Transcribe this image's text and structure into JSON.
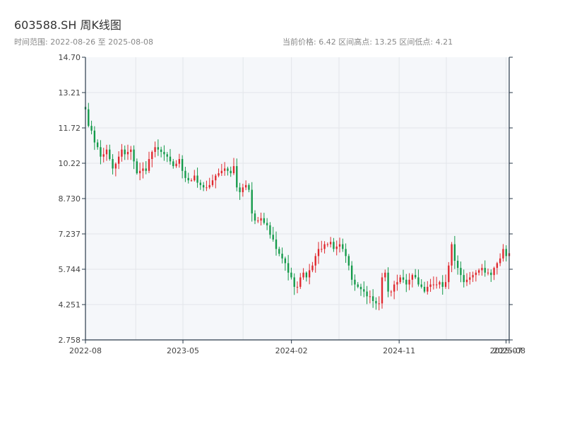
{
  "header": {
    "title": "603588.SH 周K线图",
    "range_text": "时间范围: 2022-08-26 至 2025-08-08",
    "stats_text": "当前价格: 6.42   区间高点: 13.25   区间低点: 4.21"
  },
  "colors": {
    "up": "#e0282e",
    "down": "#149a4a",
    "plot_bg": "#f5f7fa",
    "grid": "#e3e6ea",
    "axis": "#2a3a4a"
  },
  "chart_data": {
    "type": "candlestick",
    "title": "603588.SH 周K线图",
    "ylim": [
      2.758,
      14.7
    ],
    "y_ticks": [
      "2.758",
      "4.251",
      "5.744",
      "7.237",
      "8.730",
      "10.22",
      "11.72",
      "13.21",
      "14.70"
    ],
    "x_ticks": [
      "2022-08",
      "2023-05",
      "2024-02",
      "2024-11",
      "2025-07",
      "2025-08"
    ],
    "grid": true,
    "closes": [
      12.5,
      11.8,
      11.6,
      11.1,
      10.9,
      10.5,
      10.6,
      10.8,
      10.4,
      10.0,
      10.2,
      10.5,
      10.8,
      10.6,
      10.7,
      10.8,
      10.3,
      9.8,
      9.9,
      10.0,
      9.9,
      10.4,
      10.7,
      10.9,
      10.8,
      10.7,
      10.6,
      10.5,
      10.3,
      10.1,
      10.2,
      10.4,
      9.9,
      9.6,
      9.5,
      9.5,
      9.7,
      9.4,
      9.3,
      9.2,
      9.2,
      9.3,
      9.5,
      9.7,
      9.8,
      9.9,
      10.0,
      9.9,
      9.8,
      10.1,
      9.2,
      9.0,
      9.2,
      9.3,
      9.1,
      8.1,
      7.8,
      7.8,
      7.9,
      7.7,
      7.6,
      7.2,
      7.0,
      6.6,
      6.4,
      6.2,
      6.0,
      5.6,
      5.4,
      5.0,
      5.0,
      5.4,
      5.6,
      5.4,
      5.7,
      5.9,
      6.3,
      6.6,
      6.6,
      6.8,
      6.8,
      6.9,
      6.6,
      6.7,
      6.8,
      6.6,
      6.3,
      5.9,
      5.3,
      5.1,
      5.0,
      4.9,
      4.8,
      4.6,
      4.6,
      4.4,
      4.3,
      4.3,
      5.4,
      5.6,
      4.8,
      4.8,
      5.1,
      5.2,
      5.4,
      5.3,
      5.1,
      5.3,
      5.5,
      5.4,
      5.1,
      5.0,
      4.8,
      5.0,
      5.1,
      5.1,
      5.1,
      5.2,
      5.0,
      5.2,
      5.9,
      6.8,
      6.1,
      5.8,
      5.5,
      5.2,
      5.3,
      5.4,
      5.5,
      5.6,
      5.7,
      5.8,
      5.6,
      5.6,
      5.5,
      5.8,
      6.0,
      6.2,
      6.6,
      6.3,
      6.42
    ],
    "first_open": 12.6,
    "summary": {
      "current_price": 6.42,
      "range_high": 13.25,
      "range_low": 4.21
    }
  }
}
